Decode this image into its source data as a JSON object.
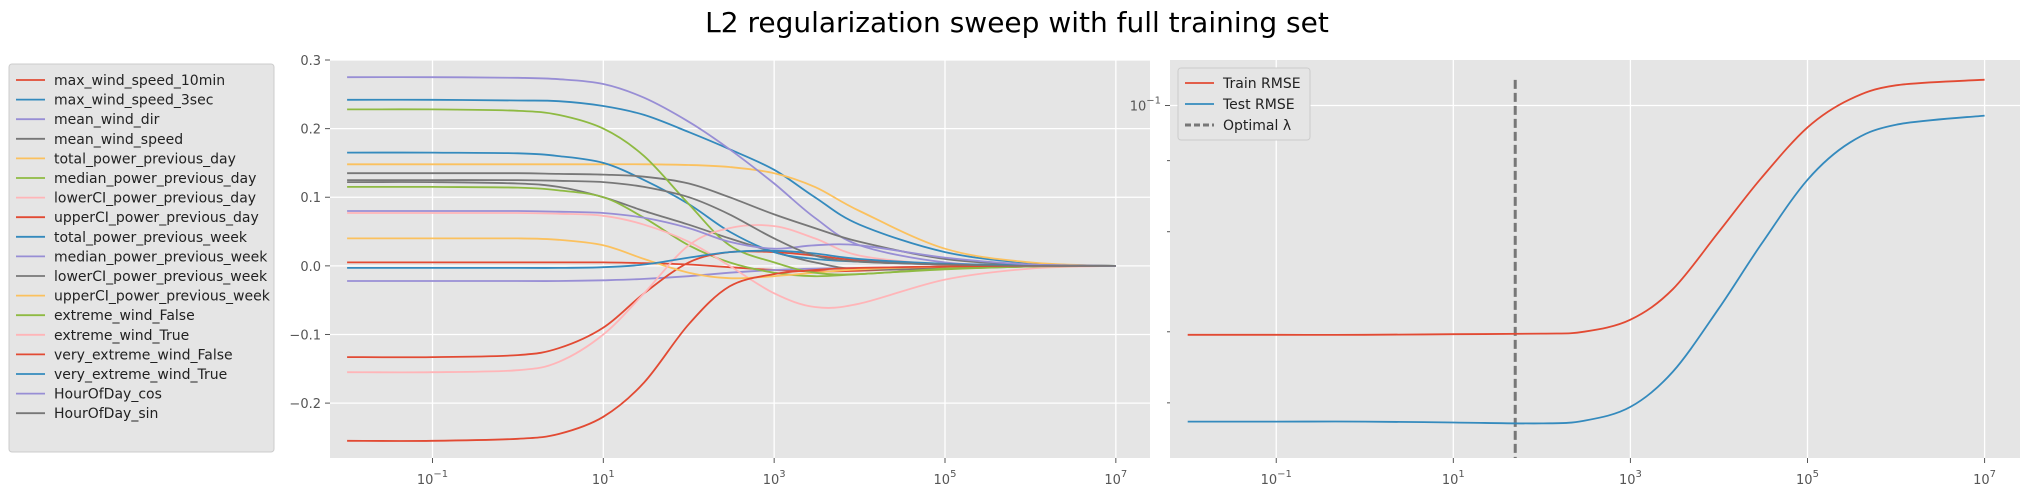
{
  "title": "L2 regularization sweep with full training set",
  "chart_data": [
    {
      "type": "line",
      "name_hint": "coefficients",
      "xscale": "log",
      "xlim_log10": [
        -2.2,
        7.4
      ],
      "ylim": [
        -0.28,
        0.3
      ],
      "xtick_exponents": [
        "-1",
        "1",
        "3",
        "5",
        "7"
      ],
      "yticks": [
        "-0.2",
        "-0.1",
        "0.0",
        "0.1",
        "0.2",
        "0.3"
      ],
      "ytick_values": [
        -0.2,
        -0.1,
        0.0,
        0.1,
        0.2,
        0.3
      ],
      "grid": true,
      "legend_placement": "outside-left",
      "series": [
        {
          "name": "max_wind_speed_10min",
          "color": "#E24A33",
          "x": [
            0.01,
            0.1,
            1,
            3,
            10,
            30,
            100,
            300,
            1000,
            3000,
            10000,
            100000,
            1000000,
            10000000
          ],
          "y": [
            0.005,
            0.005,
            0.005,
            0.005,
            0.005,
            0.004,
            0.002,
            -0.002,
            -0.006,
            -0.008,
            -0.007,
            -0.003,
            -0.001,
            0.0
          ]
        },
        {
          "name": "max_wind_speed_3sec",
          "color": "#348ABD",
          "x": [
            0.01,
            0.1,
            1,
            3,
            10,
            30,
            100,
            300,
            1000,
            3000,
            10000,
            100000,
            1000000,
            10000000
          ],
          "y": [
            0.242,
            0.242,
            0.241,
            0.24,
            0.233,
            0.22,
            0.195,
            0.17,
            0.14,
            0.1,
            0.06,
            0.02,
            0.004,
            0.0
          ]
        },
        {
          "name": "mean_wind_dir",
          "color": "#988ED5",
          "x": [
            0.01,
            0.1,
            1,
            3,
            10,
            30,
            100,
            300,
            1000,
            3000,
            10000,
            100000,
            1000000,
            10000000
          ],
          "y": [
            -0.022,
            -0.022,
            -0.022,
            -0.022,
            -0.021,
            -0.019,
            -0.015,
            -0.01,
            -0.006,
            -0.004,
            -0.003,
            -0.001,
            0.0,
            0.0
          ]
        },
        {
          "name": "mean_wind_speed",
          "color": "#777777",
          "x": [
            0.01,
            0.1,
            1,
            3,
            10,
            30,
            100,
            300,
            1000,
            3000,
            10000,
            100000,
            1000000,
            10000000
          ],
          "y": [
            0.122,
            0.122,
            0.12,
            0.115,
            0.1,
            0.08,
            0.06,
            0.04,
            0.02,
            0.005,
            -0.005,
            -0.004,
            -0.001,
            0.0
          ]
        },
        {
          "name": "total_power_previous_day",
          "color": "#FBC15E",
          "x": [
            0.01,
            0.1,
            1,
            3,
            10,
            30,
            100,
            300,
            1000,
            3000,
            10000,
            100000,
            1000000,
            10000000
          ],
          "y": [
            0.148,
            0.148,
            0.148,
            0.148,
            0.148,
            0.148,
            0.147,
            0.144,
            0.135,
            0.115,
            0.08,
            0.025,
            0.005,
            0.0
          ]
        },
        {
          "name": "median_power_previous_day",
          "color": "#8EBA42",
          "x": [
            0.01,
            0.1,
            1,
            3,
            10,
            30,
            100,
            300,
            1000,
            3000,
            10000,
            100000,
            1000000,
            10000000
          ],
          "y": [
            0.115,
            0.115,
            0.114,
            0.11,
            0.1,
            0.07,
            0.03,
            0.005,
            -0.01,
            -0.015,
            -0.012,
            -0.005,
            -0.001,
            0.0
          ]
        },
        {
          "name": "lowerCI_power_previous_day",
          "color": "#FFB5B8",
          "x": [
            0.01,
            0.1,
            1,
            3,
            10,
            30,
            100,
            300,
            1000,
            3000,
            10000,
            100000,
            1000000,
            10000000
          ],
          "y": [
            0.077,
            0.077,
            0.077,
            0.076,
            0.073,
            0.06,
            0.035,
            0.0,
            -0.04,
            -0.06,
            -0.055,
            -0.02,
            -0.004,
            0.0
          ]
        },
        {
          "name": "upperCI_power_previous_day",
          "color": "#E24A33",
          "x": [
            0.01,
            0.1,
            1,
            3,
            10,
            30,
            100,
            300,
            1000,
            3000,
            10000,
            100000,
            1000000,
            10000000
          ],
          "y": [
            -0.133,
            -0.133,
            -0.13,
            -0.12,
            -0.09,
            -0.04,
            0.005,
            0.02,
            0.02,
            0.015,
            0.008,
            0.002,
            0.0,
            0.0
          ]
        },
        {
          "name": "total_power_previous_week",
          "color": "#348ABD",
          "x": [
            0.01,
            0.1,
            1,
            3,
            10,
            30,
            100,
            300,
            1000,
            3000,
            10000,
            100000,
            1000000,
            10000000
          ],
          "y": [
            0.165,
            0.165,
            0.164,
            0.16,
            0.15,
            0.125,
            0.09,
            0.05,
            0.02,
            0.01,
            0.006,
            0.002,
            0.0,
            0.0
          ]
        },
        {
          "name": "median_power_previous_week",
          "color": "#988ED5",
          "x": [
            0.01,
            0.1,
            1,
            3,
            10,
            30,
            100,
            300,
            1000,
            3000,
            10000,
            100000,
            1000000,
            10000000
          ],
          "y": [
            0.275,
            0.275,
            0.274,
            0.272,
            0.265,
            0.245,
            0.21,
            0.17,
            0.12,
            0.07,
            0.03,
            0.005,
            0.001,
            0.0
          ]
        },
        {
          "name": "lowerCI_power_previous_week",
          "color": "#777777",
          "x": [
            0.01,
            0.1,
            1,
            3,
            10,
            30,
            100,
            300,
            1000,
            3000,
            10000,
            100000,
            1000000,
            10000000
          ],
          "y": [
            0.135,
            0.135,
            0.135,
            0.134,
            0.133,
            0.13,
            0.12,
            0.1,
            0.075,
            0.055,
            0.035,
            0.01,
            0.002,
            0.0
          ]
        },
        {
          "name": "upperCI_power_previous_week",
          "color": "#FBC15E",
          "x": [
            0.01,
            0.1,
            1,
            3,
            10,
            30,
            100,
            300,
            1000,
            3000,
            10000,
            100000,
            1000000,
            10000000
          ],
          "y": [
            0.04,
            0.04,
            0.04,
            0.038,
            0.03,
            0.01,
            -0.01,
            -0.018,
            -0.015,
            -0.01,
            -0.005,
            -0.001,
            0.0,
            0.0
          ]
        },
        {
          "name": "extreme_wind_False",
          "color": "#8EBA42",
          "x": [
            0.01,
            0.1,
            1,
            3,
            10,
            30,
            100,
            300,
            1000,
            3000,
            10000,
            100000,
            1000000,
            10000000
          ],
          "y": [
            0.228,
            0.228,
            0.226,
            0.22,
            0.2,
            0.16,
            0.09,
            0.03,
            0.005,
            -0.01,
            -0.012,
            -0.004,
            -0.001,
            0.0
          ]
        },
        {
          "name": "extreme_wind_True",
          "color": "#FFB5B8",
          "x": [
            0.01,
            0.1,
            1,
            3,
            10,
            30,
            100,
            300,
            1000,
            3000,
            10000,
            100000,
            1000000,
            10000000
          ],
          "y": [
            -0.155,
            -0.155,
            -0.152,
            -0.14,
            -0.1,
            -0.04,
            0.03,
            0.055,
            0.058,
            0.04,
            0.015,
            0.002,
            0.0,
            0.0
          ]
        },
        {
          "name": "very_extreme_wind_False",
          "color": "#E24A33",
          "x": [
            0.01,
            0.1,
            1,
            3,
            10,
            30,
            100,
            300,
            1000,
            3000,
            10000,
            100000,
            1000000,
            10000000
          ],
          "y": [
            -0.255,
            -0.255,
            -0.252,
            -0.245,
            -0.22,
            -0.17,
            -0.085,
            -0.03,
            -0.012,
            -0.006,
            -0.003,
            -0.001,
            0.0,
            0.0
          ]
        },
        {
          "name": "very_extreme_wind_True",
          "color": "#348ABD",
          "x": [
            0.01,
            0.1,
            1,
            3,
            10,
            30,
            100,
            300,
            1000,
            3000,
            10000,
            100000,
            1000000,
            10000000
          ],
          "y": [
            -0.003,
            -0.003,
            -0.003,
            -0.003,
            -0.002,
            0.002,
            0.012,
            0.02,
            0.022,
            0.018,
            0.01,
            0.003,
            0.001,
            0.0
          ]
        },
        {
          "name": "HourOfDay_cos",
          "color": "#988ED5",
          "x": [
            0.01,
            0.1,
            1,
            3,
            10,
            30,
            100,
            300,
            1000,
            3000,
            10000,
            100000,
            1000000,
            10000000
          ],
          "y": [
            0.08,
            0.08,
            0.08,
            0.079,
            0.077,
            0.07,
            0.055,
            0.035,
            0.025,
            0.03,
            0.03,
            0.012,
            0.002,
            0.0
          ]
        },
        {
          "name": "HourOfDay_sin",
          "color": "#777777",
          "x": [
            0.01,
            0.1,
            1,
            3,
            10,
            30,
            100,
            300,
            1000,
            3000,
            10000,
            100000,
            1000000,
            10000000
          ],
          "y": [
            0.125,
            0.125,
            0.125,
            0.124,
            0.122,
            0.115,
            0.1,
            0.075,
            0.04,
            0.015,
            0.006,
            0.002,
            0.0,
            0.0
          ]
        }
      ]
    },
    {
      "type": "line",
      "name_hint": "rmse",
      "xscale": "log",
      "yscale": "log",
      "xlim_log10": [
        -2.2,
        7.4
      ],
      "ylim_log10": [
        -1.62,
        -0.92
      ],
      "xtick_exponents": [
        "-1",
        "1",
        "3",
        "5",
        "7"
      ],
      "ytick_major": [
        {
          "base": "10",
          "exp": "−1",
          "log10": -1.0
        }
      ],
      "ytick_minor_log10": [
        -1.097,
        -1.222,
        -1.398,
        -1.523
      ],
      "grid": true,
      "legend_placement": "top-left",
      "optimal_lambda": 50,
      "optimal_label": "Optimal λ",
      "series": [
        {
          "name": "Train RMSE",
          "color": "#E24A33",
          "x": [
            0.01,
            0.1,
            1,
            10,
            100,
            300,
            1000,
            3000,
            10000,
            30000,
            100000,
            300000,
            1000000,
            10000000
          ],
          "y": [
            0.0395,
            0.0395,
            0.0395,
            0.0396,
            0.0397,
            0.04,
            0.042,
            0.0475,
            0.06,
            0.0745,
            0.0915,
            0.1025,
            0.1085,
            0.111
          ]
        },
        {
          "name": "Test RMSE",
          "color": "#348ABD",
          "x": [
            0.01,
            0.1,
            1,
            10,
            100,
            300,
            1000,
            3000,
            10000,
            30000,
            100000,
            300000,
            1000000,
            10000000
          ],
          "y": [
            0.0278,
            0.0278,
            0.0278,
            0.0277,
            0.0276,
            0.0279,
            0.0295,
            0.034,
            0.044,
            0.057,
            0.074,
            0.086,
            0.0925,
            0.096
          ]
        }
      ]
    }
  ]
}
